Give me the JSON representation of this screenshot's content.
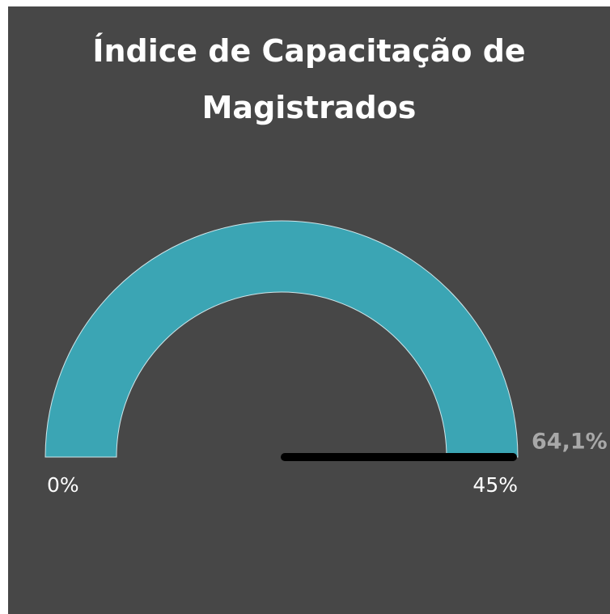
{
  "chart_data": {
    "type": "gauge",
    "title": "Índice de Capacitação de Magistrados",
    "value": 64.1,
    "value_label": "64,1%",
    "color": "#3ba5b4",
    "needle_color": "#000000",
    "ylim": [
      0,
      45
    ],
    "yticks": [
      {
        "value": 0,
        "label": "0%"
      },
      {
        "value": 45,
        "label": "45%"
      }
    ]
  }
}
